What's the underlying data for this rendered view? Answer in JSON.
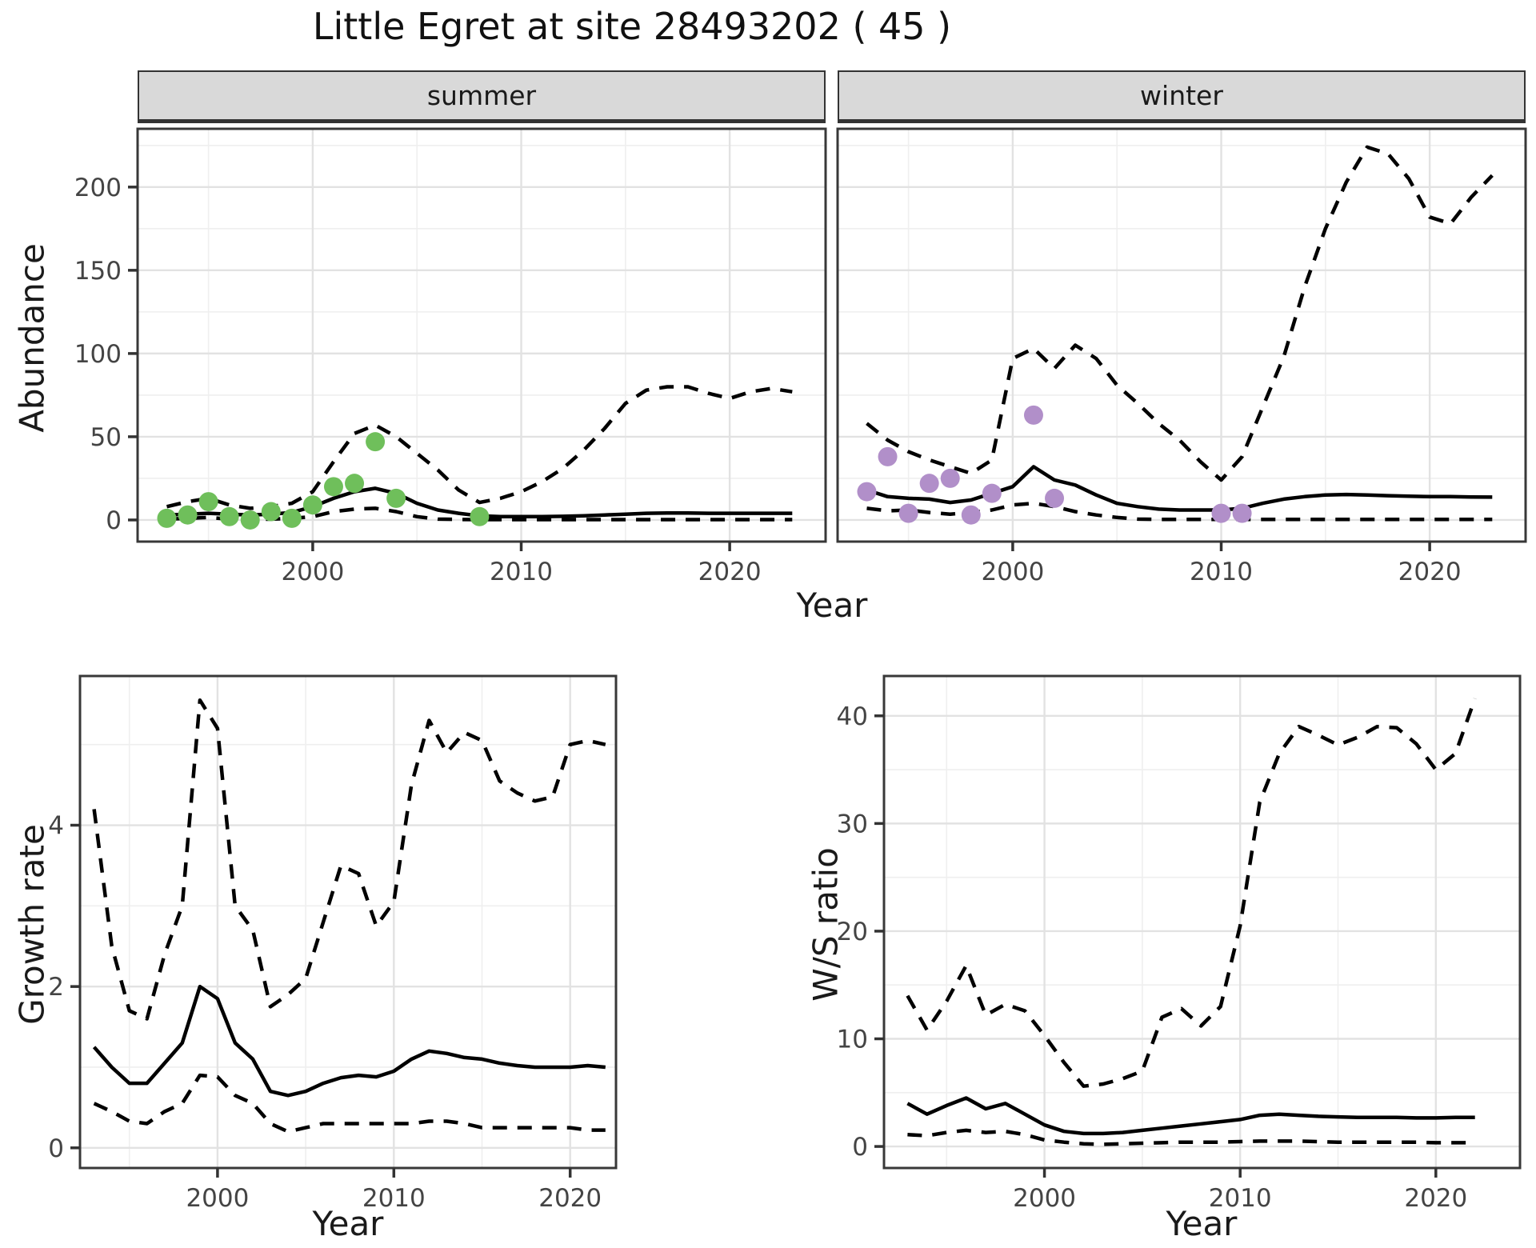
{
  "title": "Little Egret at site 28493202 ( 45 )",
  "labels": {
    "facet_summer": "summer",
    "facet_winter": "winter",
    "y_abundance": "Abundance",
    "y_growth": "Growth rate",
    "y_ws": "W/S ratio",
    "x_year": "Year"
  },
  "colors": {
    "summer_point": "#6FBF5B",
    "winter_point": "#B18FC9",
    "line": "#000000",
    "grid_major": "#E2E2E2",
    "grid_minor": "#EFEFEF",
    "strip_bg": "#D9D9D9",
    "panel_border": "#383838",
    "tick_mark": "#333333",
    "tick_text": "#444444"
  },
  "chart_data": [
    {
      "id": "abundance_summer",
      "type": "line",
      "facet": "summer",
      "xlabel": "Year",
      "ylabel": "Abundance",
      "xticks": [
        2000,
        2010,
        2020
      ],
      "xminor": [
        1995,
        2005,
        2015
      ],
      "yticks": [
        0,
        50,
        100,
        150,
        200
      ],
      "yminor": [
        25,
        75,
        125,
        175,
        225
      ],
      "years": [
        1993,
        1994,
        1995,
        1996,
        1997,
        1998,
        1999,
        2000,
        2001,
        2002,
        2003,
        2004,
        2005,
        2006,
        2007,
        2008,
        2009,
        2010,
        2011,
        2012,
        2013,
        2014,
        2015,
        2016,
        2017,
        2018,
        2019,
        2020,
        2021,
        2022,
        2023
      ],
      "series": [
        {
          "name": "mean",
          "style": "solid",
          "values": [
            3,
            3.5,
            4,
            3.5,
            3,
            3.5,
            4.5,
            8,
            13,
            17,
            19,
            16,
            10,
            6,
            4,
            2.5,
            2,
            2,
            2,
            2.2,
            2.5,
            3,
            3.5,
            4,
            4.2,
            4.2,
            4,
            4,
            4,
            4,
            4
          ]
        },
        {
          "name": "upper_ci",
          "style": "dashed",
          "values": [
            8,
            11,
            13,
            9,
            7,
            8,
            10,
            17,
            35,
            52,
            57,
            50,
            40,
            30,
            18,
            10.5,
            13,
            17,
            23,
            31,
            42,
            55,
            70,
            78,
            80,
            80,
            76,
            73,
            77,
            79,
            77
          ]
        },
        {
          "name": "lower_ci",
          "style": "dashed",
          "values": [
            0.5,
            1,
            1.5,
            0.5,
            0.3,
            0.5,
            1,
            2,
            5,
            6.5,
            7,
            5,
            2,
            0.5,
            0.3,
            0.2,
            0.2,
            0.2,
            0.2,
            0.2,
            0.2,
            0.2,
            0.2,
            0.2,
            0.2,
            0.2,
            0.2,
            0.2,
            0.2,
            0.2,
            0.2
          ]
        },
        {
          "name": "observations",
          "style": "points",
          "color": "#6FBF5B",
          "x": [
            1993,
            1994,
            1995,
            1996,
            1997,
            1998,
            1999,
            2000,
            2001,
            2002,
            2003,
            2004,
            2008
          ],
          "values": [
            1,
            3,
            11,
            2,
            0,
            5,
            1,
            9,
            20,
            22,
            47,
            13,
            2
          ]
        }
      ]
    },
    {
      "id": "abundance_winter",
      "type": "line",
      "facet": "winter",
      "xlabel": "Year",
      "ylabel": "Abundance",
      "xticks": [
        2000,
        2010,
        2020
      ],
      "xminor": [
        1995,
        2005,
        2015
      ],
      "yticks": [
        0,
        50,
        100,
        150,
        200
      ],
      "yminor": [
        25,
        75,
        125,
        175,
        225
      ],
      "years": [
        1993,
        1994,
        1995,
        1996,
        1997,
        1998,
        1999,
        2000,
        2001,
        2002,
        2003,
        2004,
        2005,
        2006,
        2007,
        2008,
        2009,
        2010,
        2011,
        2012,
        2013,
        2014,
        2015,
        2016,
        2017,
        2018,
        2019,
        2020,
        2021,
        2022,
        2023
      ],
      "series": [
        {
          "name": "mean",
          "style": "solid",
          "values": [
            18,
            14,
            13,
            12.5,
            10.5,
            12,
            16,
            20,
            32,
            24,
            21,
            15,
            10,
            8,
            6.5,
            6,
            6,
            6,
            7,
            10,
            12.5,
            14,
            15,
            15.3,
            15,
            14.6,
            14.3,
            14,
            14,
            13.8,
            13.7
          ]
        },
        {
          "name": "upper_ci",
          "style": "dashed",
          "values": [
            58,
            48,
            41,
            36,
            32,
            28,
            36,
            97,
            103,
            91,
            105,
            97,
            81,
            70,
            58,
            48,
            35,
            24,
            38,
            68,
            98,
            140,
            175,
            203,
            224,
            220,
            205,
            182,
            178,
            194,
            207
          ]
        },
        {
          "name": "lower_ci",
          "style": "dashed",
          "values": [
            7,
            5.5,
            6,
            4.5,
            3.5,
            4.5,
            6,
            9,
            10,
            8,
            5,
            3,
            1.5,
            0.5,
            0.3,
            0.3,
            0.3,
            0.3,
            0.3,
            0.3,
            0.3,
            0.3,
            0.3,
            0.3,
            0.3,
            0.3,
            0.3,
            0.3,
            0.3,
            0.3,
            0.3
          ]
        },
        {
          "name": "observations",
          "style": "points",
          "color": "#B18FC9",
          "x": [
            1993,
            1994,
            1995,
            1996,
            1997,
            1998,
            1999,
            2001,
            2002,
            2010,
            2011
          ],
          "values": [
            17,
            38,
            4,
            22,
            25,
            3,
            16,
            63,
            13,
            4,
            4
          ]
        }
      ]
    },
    {
      "id": "growth_rate",
      "type": "line",
      "xlabel": "Year",
      "ylabel": "Growth rate",
      "xticks": [
        2000,
        2010,
        2020
      ],
      "xminor": [
        1995,
        2005,
        2015
      ],
      "yticks": [
        0,
        2,
        4
      ],
      "yminor": [
        1,
        3,
        5
      ],
      "years": [
        1993,
        1994,
        1995,
        1996,
        1997,
        1998,
        1999,
        2000,
        2001,
        2002,
        2003,
        2004,
        2005,
        2006,
        2007,
        2008,
        2009,
        2010,
        2011,
        2012,
        2013,
        2014,
        2015,
        2016,
        2017,
        2018,
        2019,
        2020,
        2021,
        2022
      ],
      "series": [
        {
          "name": "mean",
          "style": "solid",
          "values": [
            1.25,
            1.0,
            0.8,
            0.8,
            1.05,
            1.3,
            2.0,
            1.85,
            1.3,
            1.1,
            0.7,
            0.65,
            0.7,
            0.8,
            0.87,
            0.9,
            0.88,
            0.95,
            1.1,
            1.2,
            1.17,
            1.12,
            1.1,
            1.05,
            1.02,
            1.0,
            1.0,
            1.0,
            1.02,
            1.0
          ]
        },
        {
          "name": "upper_ci",
          "style": "dashed",
          "values": [
            4.2,
            2.5,
            1.7,
            1.6,
            2.4,
            3.0,
            5.55,
            5.2,
            3.0,
            2.7,
            1.75,
            1.9,
            2.1,
            2.8,
            3.5,
            3.4,
            2.75,
            3.05,
            4.5,
            5.3,
            4.9,
            5.15,
            5.05,
            4.55,
            4.4,
            4.3,
            4.35,
            5.0,
            5.05,
            5.0
          ]
        },
        {
          "name": "lower_ci",
          "style": "dashed",
          "values": [
            0.55,
            0.45,
            0.33,
            0.3,
            0.45,
            0.55,
            0.9,
            0.88,
            0.65,
            0.55,
            0.3,
            0.2,
            0.25,
            0.3,
            0.3,
            0.3,
            0.3,
            0.3,
            0.3,
            0.33,
            0.33,
            0.3,
            0.25,
            0.25,
            0.25,
            0.25,
            0.25,
            0.25,
            0.22,
            0.22
          ]
        }
      ]
    },
    {
      "id": "ws_ratio",
      "type": "line",
      "xlabel": "Year",
      "ylabel": "W/S ratio",
      "xticks": [
        2000,
        2010,
        2020
      ],
      "xminor": [
        1995,
        2005,
        2015
      ],
      "yticks": [
        0,
        10,
        20,
        30,
        40
      ],
      "yminor": [
        5,
        15,
        25,
        35
      ],
      "years": [
        1993,
        1994,
        1995,
        1996,
        1997,
        1998,
        1999,
        2000,
        2001,
        2002,
        2003,
        2004,
        2005,
        2006,
        2007,
        2008,
        2009,
        2010,
        2011,
        2012,
        2013,
        2014,
        2015,
        2016,
        2017,
        2018,
        2019,
        2020,
        2021,
        2022
      ],
      "series": [
        {
          "name": "mean",
          "style": "solid",
          "values": [
            4.0,
            3.0,
            3.8,
            4.5,
            3.5,
            4.0,
            3.0,
            2.0,
            1.4,
            1.2,
            1.2,
            1.3,
            1.5,
            1.7,
            1.9,
            2.1,
            2.3,
            2.5,
            2.9,
            3.0,
            2.9,
            2.8,
            2.75,
            2.7,
            2.7,
            2.7,
            2.65,
            2.65,
            2.7,
            2.7
          ]
        },
        {
          "name": "upper_ci",
          "style": "dashed",
          "values": [
            14,
            10.8,
            13.5,
            16.8,
            12.2,
            13.2,
            12.6,
            10.3,
            7.8,
            5.6,
            5.8,
            6.3,
            7.0,
            12.0,
            12.8,
            11.2,
            13,
            20.5,
            32,
            36.5,
            39,
            38.2,
            37.3,
            38,
            39,
            38.9,
            37.4,
            35,
            36.5,
            41.6
          ]
        },
        {
          "name": "lower_ci",
          "style": "dashed",
          "values": [
            1.1,
            1.0,
            1.3,
            1.5,
            1.3,
            1.4,
            1.1,
            0.6,
            0.4,
            0.25,
            0.2,
            0.25,
            0.3,
            0.35,
            0.4,
            0.4,
            0.4,
            0.45,
            0.5,
            0.5,
            0.5,
            0.45,
            0.4,
            0.4,
            0.4,
            0.4,
            0.4,
            0.35,
            0.35,
            0.35
          ]
        }
      ]
    }
  ]
}
